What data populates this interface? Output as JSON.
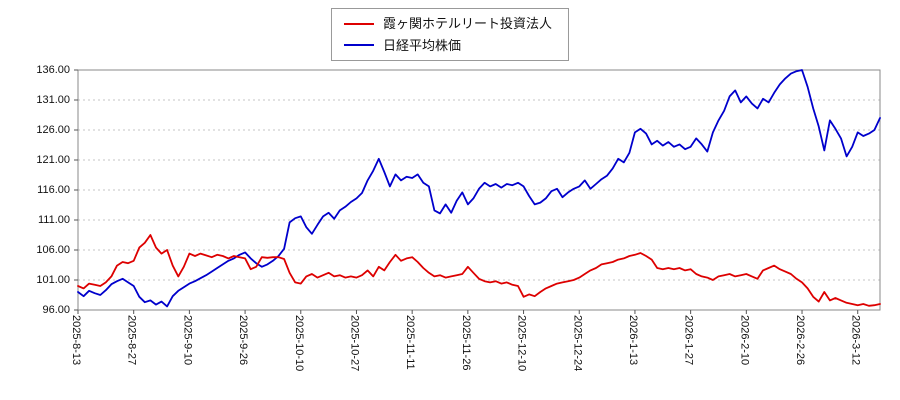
{
  "legend": {
    "items": [
      {
        "label": "霞ヶ関ホテルリート投資法人",
        "color": "#dd0000"
      },
      {
        "label": "日経平均株価",
        "color": "#0000cc"
      }
    ]
  },
  "chart_data": {
    "type": "line",
    "title": "",
    "xlabel": "",
    "ylabel": "",
    "ylim": [
      96,
      136
    ],
    "yticks": [
      96,
      101,
      106,
      111,
      116,
      121,
      126,
      131,
      136
    ],
    "grid": "horizontal-dotted",
    "legend_position": "top-center",
    "categories": [
      "2025-8-13",
      "2025-8-27",
      "2025-9-10",
      "2025-9-26",
      "2025-10-10",
      "2025-10-27",
      "2025-11-11",
      "2025-11-26",
      "2025-12-10",
      "2025-12-24",
      "2026-1-13",
      "2026-1-27",
      "2026-2-10",
      "2026-2-26",
      "2026-3-12"
    ],
    "tick_indices": [
      0,
      10,
      20,
      30,
      40,
      50,
      60,
      70,
      80,
      90,
      100,
      110,
      120,
      130,
      140
    ],
    "series": [
      {
        "name": "霞ヶ関ホテルリート投資法人",
        "color": "#dd0000",
        "values": [
          100.0,
          99.6,
          100.4,
          100.2,
          100.0,
          100.6,
          101.6,
          103.4,
          104.0,
          103.8,
          104.2,
          106.4,
          107.2,
          108.5,
          106.4,
          105.4,
          106.0,
          103.4,
          101.6,
          103.2,
          105.4,
          105.0,
          105.4,
          105.1,
          104.8,
          105.2,
          105.0,
          104.6,
          105.0,
          104.8,
          104.6,
          102.8,
          103.2,
          104.8,
          104.7,
          104.8,
          104.8,
          104.5,
          102.2,
          100.6,
          100.4,
          101.6,
          102.0,
          101.4,
          101.8,
          102.2,
          101.6,
          101.8,
          101.4,
          101.6,
          101.4,
          101.8,
          102.6,
          101.6,
          103.2,
          102.6,
          104.0,
          105.2,
          104.2,
          104.6,
          104.8,
          104.0,
          103.0,
          102.2,
          101.6,
          101.8,
          101.4,
          101.6,
          101.8,
          102.0,
          103.2,
          102.2,
          101.2,
          100.8,
          100.6,
          100.8,
          100.4,
          100.6,
          100.2,
          100.0,
          98.2,
          98.6,
          98.3,
          99.0,
          99.6,
          100.0,
          100.4,
          100.6,
          100.8,
          101.0,
          101.4,
          102.0,
          102.6,
          103.0,
          103.6,
          103.8,
          104.0,
          104.4,
          104.6,
          105.0,
          105.2,
          105.5,
          105.0,
          104.4,
          103.0,
          102.8,
          103.0,
          102.8,
          103.0,
          102.6,
          102.8,
          102.0,
          101.6,
          101.4,
          101.0,
          101.6,
          101.8,
          102.0,
          101.6,
          101.8,
          102.0,
          101.6,
          101.2,
          102.6,
          103.0,
          103.4,
          102.8,
          102.4,
          102.0,
          101.2,
          100.6,
          99.6,
          98.2,
          97.4,
          99.0,
          97.6,
          98.0,
          97.6,
          97.2,
          97.0,
          96.8,
          97.0,
          96.7,
          96.8,
          97.0
        ]
      },
      {
        "name": "日経平均株価",
        "color": "#0000cc",
        "values": [
          99.0,
          98.3,
          99.2,
          98.8,
          98.5,
          99.3,
          100.3,
          100.8,
          101.2,
          100.6,
          100.0,
          98.2,
          97.3,
          97.6,
          96.9,
          97.4,
          96.6,
          98.3,
          99.2,
          99.8,
          100.4,
          100.8,
          101.3,
          101.8,
          102.4,
          103.0,
          103.6,
          104.2,
          104.6,
          105.2,
          105.6,
          104.6,
          103.8,
          103.2,
          103.6,
          104.2,
          105.0,
          106.2,
          110.6,
          111.3,
          111.6,
          109.8,
          108.7,
          110.2,
          111.6,
          112.2,
          111.2,
          112.6,
          113.2,
          114.0,
          114.6,
          115.5,
          117.6,
          119.2,
          121.2,
          119.0,
          116.6,
          118.6,
          117.6,
          118.2,
          118.0,
          118.6,
          117.2,
          116.6,
          112.6,
          112.1,
          113.6,
          112.2,
          114.2,
          115.6,
          113.6,
          114.6,
          116.2,
          117.2,
          116.6,
          117.0,
          116.4,
          117.0,
          116.8,
          117.2,
          116.6,
          115.0,
          113.6,
          113.9,
          114.6,
          115.8,
          116.2,
          114.8,
          115.6,
          116.2,
          116.6,
          117.6,
          116.2,
          117.0,
          117.8,
          118.4,
          119.6,
          121.2,
          120.6,
          122.2,
          125.6,
          126.2,
          125.4,
          123.6,
          124.2,
          123.4,
          124.0,
          123.2,
          123.6,
          122.8,
          123.2,
          124.6,
          123.6,
          122.4,
          125.6,
          127.6,
          129.2,
          131.6,
          132.6,
          130.6,
          131.6,
          130.4,
          129.6,
          131.2,
          130.6,
          132.2,
          133.6,
          134.6,
          135.4,
          135.8,
          136.0,
          133.2,
          129.6,
          126.6,
          122.6,
          127.6,
          126.2,
          124.6,
          121.6,
          123.2,
          125.6,
          125.0,
          125.4,
          126.0,
          128.0
        ]
      }
    ]
  }
}
